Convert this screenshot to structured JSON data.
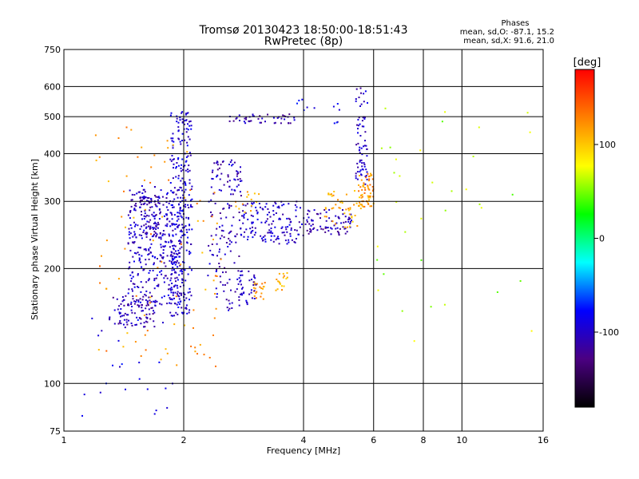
{
  "chart_data": {
    "type": "scatter",
    "title": "Tromsø 20130423 18:50:00-18:51:43",
    "subtitle": "RwPretec (8p)",
    "xlabel": "Frequency [MHz]",
    "ylabel": "Stationary phase Virtual Height [km]",
    "x_scale": "log",
    "y_scale": "log",
    "xlim": [
      1,
      16
    ],
    "ylim": [
      75,
      750
    ],
    "x_ticks": [
      1,
      2,
      4,
      6,
      8,
      10,
      16
    ],
    "x_tick_labels": [
      "1",
      "2",
      "4",
      "6",
      "8",
      "10",
      "16"
    ],
    "y_ticks": [
      75,
      100,
      200,
      300,
      400,
      500,
      600,
      750
    ],
    "y_tick_labels": [
      "75",
      "100",
      "200",
      "300",
      "400",
      "500",
      "600",
      "750"
    ],
    "grid": true,
    "annotation": {
      "title": "Phases",
      "line_o": "mean, sd,O: -87.1, 15.2",
      "line_x": "mean, sd,X:  91.6, 21.0"
    },
    "colorbar": {
      "label": "[deg]",
      "range": [
        -180,
        180
      ],
      "ticks": [
        100,
        0,
        -100
      ],
      "tick_labels": [
        "100",
        "0",
        "-100"
      ],
      "colors": [
        "#000000",
        "#4b0082",
        "#0000ff",
        "#00ffff",
        "#00ff00",
        "#ffff00",
        "#ff8000",
        "#ff0000"
      ]
    },
    "clusters": [
      {
        "f": [
          1.3,
          1.7
        ],
        "h": [
          140,
          170
        ],
        "phase": -110,
        "count": 90
      },
      {
        "f": [
          1.45,
          2.0
        ],
        "h": [
          160,
          330
        ],
        "phase": -100,
        "count": 380
      },
      {
        "f": [
          1.85,
          2.1
        ],
        "h": [
          150,
          520
        ],
        "phase": -95,
        "count": 260
      },
      {
        "f": [
          1.55,
          1.75
        ],
        "h": [
          240,
          310
        ],
        "phase": -110,
        "count": 60
      },
      {
        "f": [
          2.3,
          2.8
        ],
        "h": [
          155,
          390
        ],
        "phase": -105,
        "count": 160
      },
      {
        "f": [
          2.8,
          4.0
        ],
        "h": [
          232,
          300
        ],
        "phase": -100,
        "count": 140
      },
      {
        "f": [
          4.0,
          5.3
        ],
        "h": [
          245,
          285
        ],
        "phase": -110,
        "count": 80
      },
      {
        "f": [
          4.5,
          5.6
        ],
        "h": [
          255,
          320
        ],
        "phase": 110,
        "count": 45
      },
      {
        "f": [
          5.4,
          5.8
        ],
        "h": [
          330,
          600
        ],
        "phase": -100,
        "count": 70
      },
      {
        "f": [
          5.5,
          6.0
        ],
        "h": [
          290,
          355
        ],
        "phase": 120,
        "count": 60
      },
      {
        "f": [
          2.6,
          3.8
        ],
        "h": [
          480,
          510
        ],
        "phase": -110,
        "count": 45
      },
      {
        "f": [
          3.0,
          3.2
        ],
        "h": [
          165,
          185
        ],
        "phase": 120,
        "count": 22
      },
      {
        "f": [
          3.4,
          3.65
        ],
        "h": [
          175,
          195
        ],
        "phase": 110,
        "count": 18
      },
      {
        "f": [
          2.7,
          3.2
        ],
        "h": [
          280,
          320
        ],
        "phase": 115,
        "count": 14
      },
      {
        "f": [
          2.75,
          3.05
        ],
        "h": [
          160,
          200
        ],
        "phase": -100,
        "count": 30
      },
      {
        "f": [
          1.2,
          2.5
        ],
        "h": [
          110,
          480
        ],
        "phase": 120,
        "count": 90
      },
      {
        "f": [
          6.0,
          15.0
        ],
        "h": [
          110,
          550
        ],
        "phase": 60,
        "count": 35
      },
      {
        "f": [
          1.1,
          2.0
        ],
        "h": [
          80,
          150
        ],
        "phase": -90,
        "count": 25
      },
      {
        "f": [
          3.8,
          5.0
        ],
        "h": [
          480,
          560
        ],
        "phase": -90,
        "count": 12
      }
    ]
  }
}
